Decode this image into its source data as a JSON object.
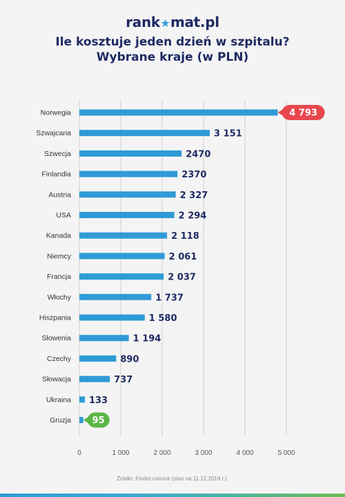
{
  "brand": {
    "logo_pre": "rank",
    "logo_post": "mat.pl",
    "logo_star": "★"
  },
  "title": {
    "line1": "Ile kosztuje jeden dzień w szpitalu?",
    "line2": "Wybrane kraje (w PLN)"
  },
  "chart_data": {
    "type": "bar",
    "orientation": "horizontal",
    "categories": [
      "Norwegia",
      "Szwajcaria",
      "Szwecja",
      "Finlandia",
      "Austria",
      "USA",
      "Kanada",
      "Niemcy",
      "Francja",
      "Włochy",
      "Hiszpania",
      "Słowenia",
      "Czechy",
      "Słowacja",
      "Ukraina",
      "Gruzja"
    ],
    "values": [
      4793,
      3151,
      2470,
      2370,
      2327,
      2294,
      2118,
      2061,
      2037,
      1737,
      1580,
      1194,
      890,
      737,
      133,
      95
    ],
    "value_labels": [
      "4 793",
      "3 151",
      "2470",
      "2370",
      "2 327",
      "2 294",
      "2 118",
      "2 061",
      "2 037",
      "1 737",
      "1 580",
      "1 194",
      "890",
      "737",
      "133",
      "95"
    ],
    "highlight": {
      "max_index": 0,
      "min_index": 15
    },
    "xlim": [
      0,
      5000
    ],
    "x_ticks": [
      0,
      1000,
      2000,
      3000,
      4000,
      5000
    ],
    "x_tick_labels": [
      "0",
      "1 000",
      "2 000",
      "3 000",
      "4 000",
      "5 000"
    ],
    "grid": true,
    "colors": {
      "bar": "#2f9bd6",
      "label": "#1f2a63",
      "highlight_max": "#e8474e",
      "highlight_min": "#5cb646",
      "grid": "#cfcfcf"
    }
  },
  "source": "Źródło: Finder.com/uk (stan na 11.12.2018 r.)."
}
